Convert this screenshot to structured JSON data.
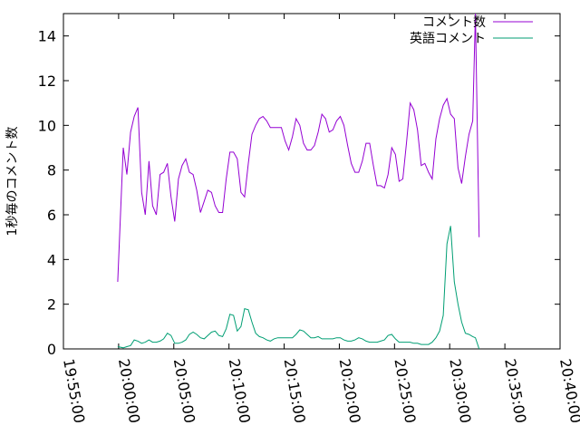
{
  "chart_data": {
    "type": "line",
    "title": "",
    "xlabel": "",
    "ylabel": "1秒毎のコメント数",
    "xlim": [
      "19:55:00",
      "20:40:00"
    ],
    "ylim": [
      0,
      15
    ],
    "x_ticks": [
      "19:55:00",
      "20:00:00",
      "20:05:00",
      "20:10:00",
      "20:15:00",
      "20:20:00",
      "20:25:00",
      "20:30:00",
      "20:35:00",
      "20:40:00"
    ],
    "y_ticks": [
      0,
      2,
      4,
      6,
      8,
      10,
      12,
      14
    ],
    "grid": false,
    "legend_position": "top-right",
    "series": [
      {
        "name": "コメント数",
        "color": "#9400d3",
        "points": [
          [
            "19:59:55",
            3.0
          ],
          [
            "20:00:25",
            9.0
          ],
          [
            "20:00:45",
            7.8
          ],
          [
            "20:01:05",
            9.7
          ],
          [
            "20:01:25",
            10.4
          ],
          [
            "20:01:45",
            10.8
          ],
          [
            "20:02:05",
            7.0
          ],
          [
            "20:02:25",
            6.0
          ],
          [
            "20:02:45",
            8.4
          ],
          [
            "20:03:05",
            6.4
          ],
          [
            "20:03:25",
            6.0
          ],
          [
            "20:03:45",
            7.8
          ],
          [
            "20:04:05",
            7.9
          ],
          [
            "20:04:25",
            8.3
          ],
          [
            "20:04:45",
            6.8
          ],
          [
            "20:05:05",
            5.7
          ],
          [
            "20:05:25",
            7.6
          ],
          [
            "20:05:45",
            8.2
          ],
          [
            "20:06:05",
            8.5
          ],
          [
            "20:06:25",
            7.9
          ],
          [
            "20:06:45",
            7.8
          ],
          [
            "20:07:05",
            7.1
          ],
          [
            "20:07:25",
            6.1
          ],
          [
            "20:07:45",
            6.6
          ],
          [
            "20:08:05",
            7.1
          ],
          [
            "20:08:25",
            7.0
          ],
          [
            "20:08:45",
            6.4
          ],
          [
            "20:09:05",
            6.1
          ],
          [
            "20:09:25",
            6.1
          ],
          [
            "20:09:45",
            7.6
          ],
          [
            "20:10:05",
            8.8
          ],
          [
            "20:10:25",
            8.8
          ],
          [
            "20:10:45",
            8.5
          ],
          [
            "20:11:05",
            7.0
          ],
          [
            "20:11:25",
            6.8
          ],
          [
            "20:11:45",
            8.3
          ],
          [
            "20:12:05",
            9.6
          ],
          [
            "20:12:25",
            10.0
          ],
          [
            "20:12:45",
            10.3
          ],
          [
            "20:13:05",
            10.4
          ],
          [
            "20:13:25",
            10.2
          ],
          [
            "20:13:45",
            9.9
          ],
          [
            "20:14:05",
            9.9
          ],
          [
            "20:14:25",
            9.9
          ],
          [
            "20:14:45",
            9.9
          ],
          [
            "20:15:05",
            9.3
          ],
          [
            "20:15:25",
            8.9
          ],
          [
            "20:15:45",
            9.5
          ],
          [
            "20:16:05",
            10.3
          ],
          [
            "20:16:25",
            10.0
          ],
          [
            "20:16:45",
            9.2
          ],
          [
            "20:17:05",
            8.9
          ],
          [
            "20:17:25",
            8.9
          ],
          [
            "20:17:45",
            9.1
          ],
          [
            "20:18:05",
            9.7
          ],
          [
            "20:18:25",
            10.5
          ],
          [
            "20:18:45",
            10.3
          ],
          [
            "20:19:05",
            9.7
          ],
          [
            "20:19:25",
            9.8
          ],
          [
            "20:19:45",
            10.2
          ],
          [
            "20:20:05",
            10.4
          ],
          [
            "20:20:25",
            10.0
          ],
          [
            "20:20:45",
            9.1
          ],
          [
            "20:21:05",
            8.3
          ],
          [
            "20:21:25",
            7.9
          ],
          [
            "20:21:45",
            7.9
          ],
          [
            "20:22:05",
            8.4
          ],
          [
            "20:22:25",
            9.2
          ],
          [
            "20:22:45",
            9.2
          ],
          [
            "20:23:05",
            8.2
          ],
          [
            "20:23:25",
            7.3
          ],
          [
            "20:23:45",
            7.3
          ],
          [
            "20:24:05",
            7.2
          ],
          [
            "20:24:25",
            7.8
          ],
          [
            "20:24:45",
            9.0
          ],
          [
            "20:25:05",
            8.7
          ],
          [
            "20:25:25",
            7.5
          ],
          [
            "20:25:45",
            7.6
          ],
          [
            "20:26:05",
            9.2
          ],
          [
            "20:26:25",
            11.0
          ],
          [
            "20:26:45",
            10.7
          ],
          [
            "20:27:05",
            9.8
          ],
          [
            "20:27:25",
            8.2
          ],
          [
            "20:27:45",
            8.3
          ],
          [
            "20:28:05",
            7.9
          ],
          [
            "20:28:25",
            7.6
          ],
          [
            "20:28:45",
            9.4
          ],
          [
            "20:29:05",
            10.3
          ],
          [
            "20:29:25",
            10.9
          ],
          [
            "20:29:45",
            11.2
          ],
          [
            "20:30:05",
            10.5
          ],
          [
            "20:30:25",
            10.3
          ],
          [
            "20:30:45",
            8.1
          ],
          [
            "20:31:05",
            7.4
          ],
          [
            "20:31:25",
            8.6
          ],
          [
            "20:31:45",
            9.6
          ],
          [
            "20:32:05",
            10.2
          ],
          [
            "20:32:20",
            15.0
          ],
          [
            "20:32:40",
            5.0
          ]
        ]
      },
      {
        "name": "英語コメント",
        "color": "#009e73",
        "points": [
          [
            "19:59:55",
            0.1
          ],
          [
            "20:00:25",
            0.05
          ],
          [
            "20:00:45",
            0.1
          ],
          [
            "20:01:05",
            0.15
          ],
          [
            "20:01:25",
            0.4
          ],
          [
            "20:01:45",
            0.35
          ],
          [
            "20:02:05",
            0.25
          ],
          [
            "20:02:25",
            0.3
          ],
          [
            "20:02:45",
            0.4
          ],
          [
            "20:03:05",
            0.3
          ],
          [
            "20:03:25",
            0.3
          ],
          [
            "20:03:45",
            0.35
          ],
          [
            "20:04:05",
            0.45
          ],
          [
            "20:04:25",
            0.7
          ],
          [
            "20:04:45",
            0.6
          ],
          [
            "20:05:05",
            0.25
          ],
          [
            "20:05:25",
            0.25
          ],
          [
            "20:05:45",
            0.3
          ],
          [
            "20:06:05",
            0.4
          ],
          [
            "20:06:25",
            0.65
          ],
          [
            "20:06:45",
            0.75
          ],
          [
            "20:07:05",
            0.65
          ],
          [
            "20:07:25",
            0.5
          ],
          [
            "20:07:45",
            0.45
          ],
          [
            "20:08:05",
            0.6
          ],
          [
            "20:08:25",
            0.75
          ],
          [
            "20:08:45",
            0.8
          ],
          [
            "20:09:05",
            0.6
          ],
          [
            "20:09:25",
            0.55
          ],
          [
            "20:09:45",
            0.9
          ],
          [
            "20:10:05",
            1.55
          ],
          [
            "20:10:25",
            1.5
          ],
          [
            "20:10:45",
            0.8
          ],
          [
            "20:11:05",
            1.0
          ],
          [
            "20:11:25",
            1.8
          ],
          [
            "20:11:45",
            1.75
          ],
          [
            "20:12:05",
            1.2
          ],
          [
            "20:12:25",
            0.7
          ],
          [
            "20:12:45",
            0.55
          ],
          [
            "20:13:05",
            0.5
          ],
          [
            "20:13:25",
            0.4
          ],
          [
            "20:13:45",
            0.35
          ],
          [
            "20:14:05",
            0.45
          ],
          [
            "20:14:25",
            0.5
          ],
          [
            "20:14:45",
            0.5
          ],
          [
            "20:15:05",
            0.5
          ],
          [
            "20:15:25",
            0.5
          ],
          [
            "20:15:45",
            0.5
          ],
          [
            "20:16:05",
            0.65
          ],
          [
            "20:16:25",
            0.85
          ],
          [
            "20:16:45",
            0.8
          ],
          [
            "20:17:05",
            0.65
          ],
          [
            "20:17:25",
            0.5
          ],
          [
            "20:17:45",
            0.5
          ],
          [
            "20:18:05",
            0.55
          ],
          [
            "20:18:25",
            0.45
          ],
          [
            "20:18:45",
            0.45
          ],
          [
            "20:19:05",
            0.45
          ],
          [
            "20:19:25",
            0.45
          ],
          [
            "20:19:45",
            0.5
          ],
          [
            "20:20:05",
            0.5
          ],
          [
            "20:20:25",
            0.4
          ],
          [
            "20:20:45",
            0.35
          ],
          [
            "20:21:05",
            0.35
          ],
          [
            "20:21:25",
            0.4
          ],
          [
            "20:21:45",
            0.5
          ],
          [
            "20:22:05",
            0.45
          ],
          [
            "20:22:25",
            0.35
          ],
          [
            "20:22:45",
            0.3
          ],
          [
            "20:23:05",
            0.3
          ],
          [
            "20:23:25",
            0.3
          ],
          [
            "20:23:45",
            0.35
          ],
          [
            "20:24:05",
            0.4
          ],
          [
            "20:24:25",
            0.6
          ],
          [
            "20:24:45",
            0.65
          ],
          [
            "20:25:05",
            0.45
          ],
          [
            "20:25:25",
            0.3
          ],
          [
            "20:25:45",
            0.3
          ],
          [
            "20:26:05",
            0.3
          ],
          [
            "20:26:25",
            0.3
          ],
          [
            "20:26:45",
            0.25
          ],
          [
            "20:27:05",
            0.25
          ],
          [
            "20:27:25",
            0.2
          ],
          [
            "20:27:45",
            0.2
          ],
          [
            "20:28:05",
            0.2
          ],
          [
            "20:28:25",
            0.3
          ],
          [
            "20:28:45",
            0.5
          ],
          [
            "20:29:05",
            0.8
          ],
          [
            "20:29:25",
            1.5
          ],
          [
            "20:29:45",
            4.7
          ],
          [
            "20:30:05",
            5.5
          ],
          [
            "20:30:25",
            3.0
          ],
          [
            "20:30:45",
            2.0
          ],
          [
            "20:31:05",
            1.2
          ],
          [
            "20:31:25",
            0.7
          ],
          [
            "20:31:45",
            0.65
          ],
          [
            "20:32:05",
            0.55
          ],
          [
            "20:32:20",
            0.5
          ],
          [
            "20:32:40",
            0.0
          ]
        ]
      }
    ]
  }
}
